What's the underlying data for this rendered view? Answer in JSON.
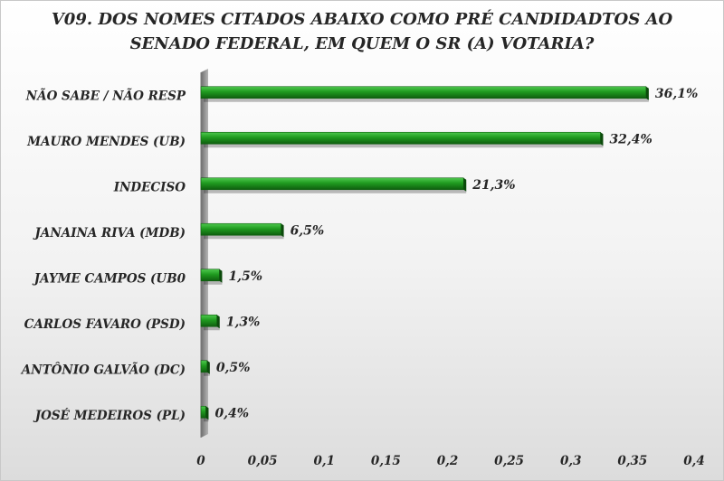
{
  "chart_data": {
    "type": "bar",
    "orientation": "horizontal",
    "title_lines": [
      "V09. DOS NOMES CITADOS ABAIXO COMO PRÉ CANDIDADTOS AO",
      "SENADO FEDERAL, EM QUEM O SR (A) VOTARIA?"
    ],
    "categories": [
      "NÃO SABE / NÃO RESP",
      "MAURO MENDES (UB)",
      "INDECISO",
      "JANAINA RIVA (MDB)",
      "JAYME CAMPOS (UB0",
      "CARLOS FAVARO (PSD)",
      "ANTÔNIO GALVÃO (DC)",
      "JOSÉ MEDEIROS (PL)"
    ],
    "values": [
      0.361,
      0.324,
      0.213,
      0.065,
      0.015,
      0.013,
      0.005,
      0.004
    ],
    "value_labels": [
      "36,1%",
      "32,4%",
      "21,3%",
      "6,5%",
      "1,5%",
      "1,3%",
      "0,5%",
      "0,4%"
    ],
    "xlim": [
      0,
      0.4
    ],
    "xticks": [
      0,
      0.05,
      0.1,
      0.15,
      0.2,
      0.25,
      0.3,
      0.35,
      0.4
    ],
    "xtick_labels": [
      "0",
      "0,05",
      "0,1",
      "0,15",
      "0,2",
      "0,25",
      "0,3",
      "0,35",
      "0,4"
    ],
    "grid": false,
    "legend": "none",
    "colors": {
      "bar_light": "#4fc94f",
      "bar_mid": "#1f9a1f",
      "bar_dark": "#0f5e0f",
      "bar_side": "#0b4a0b",
      "floor": "#8a8a8a",
      "text": "#262626"
    }
  }
}
